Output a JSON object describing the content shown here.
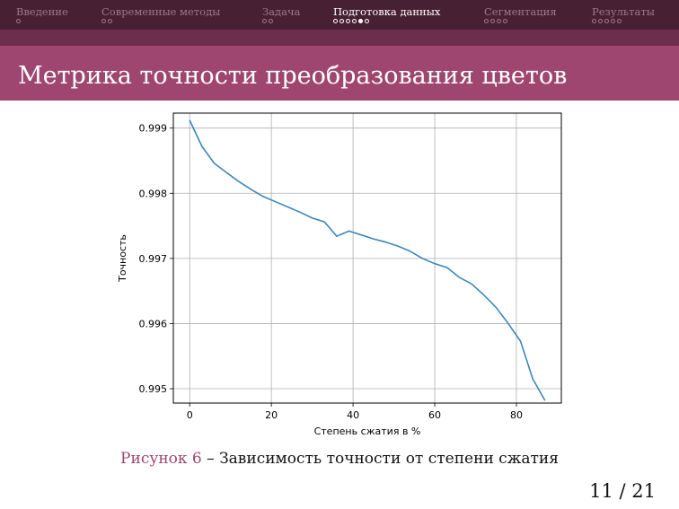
{
  "navbar": {
    "sections": [
      {
        "label": "Введение",
        "dots": 1,
        "current": -1,
        "active": false
      },
      {
        "label": "Современные методы",
        "dots": 2,
        "current": -1,
        "active": false
      },
      {
        "label": "Задача",
        "dots": 2,
        "current": -1,
        "active": false
      },
      {
        "label": "Подготовка данных",
        "dots": 6,
        "current": 4,
        "active": true
      },
      {
        "label": "Сегментация",
        "dots": 4,
        "current": -1,
        "active": false
      },
      {
        "label": "Результаты",
        "dots": 5,
        "current": -1,
        "active": false
      }
    ]
  },
  "slide": {
    "title": "Метрика точности преобразования цветов",
    "caption_label": "Рисунок 6",
    "caption_sep": " – ",
    "caption_text": "Зависимость точности от степени сжатия",
    "page": "11 / 21"
  },
  "colors": {
    "navbar_bg": "#472033",
    "title_bg": "#9e4670",
    "accent": "#9e4670",
    "line": "#3b87bd"
  },
  "chart_data": {
    "type": "line",
    "title": "",
    "xlabel": "Степень сжатия в %",
    "ylabel": "Точность",
    "xlim": [
      -4,
      91
    ],
    "ylim": [
      0.99478,
      0.99923
    ],
    "xticks": [
      0,
      20,
      40,
      60,
      80
    ],
    "yticks": [
      0.995,
      0.996,
      0.997,
      0.998,
      0.999
    ],
    "ytick_labels": [
      "0.995",
      "0.996",
      "0.997",
      "0.998",
      "0.999"
    ],
    "grid": true,
    "series": [
      {
        "x": [
          0,
          3,
          6,
          9,
          12,
          15,
          18,
          21,
          24,
          27,
          30,
          33,
          36,
          39,
          42,
          45,
          48,
          51,
          54,
          57,
          60,
          63,
          66,
          69,
          72,
          75,
          78,
          81,
          84,
          87
        ],
        "y": [
          0.99912,
          0.99872,
          0.99846,
          0.99832,
          0.99818,
          0.99806,
          0.99795,
          0.99787,
          0.99779,
          0.99771,
          0.99762,
          0.99756,
          0.99734,
          0.99742,
          0.99736,
          0.9973,
          0.99725,
          0.99719,
          0.99711,
          0.997,
          0.99692,
          0.99686,
          0.99671,
          0.99661,
          0.99644,
          0.99625,
          0.996,
          0.99573,
          0.99515,
          0.99482
        ]
      }
    ]
  }
}
